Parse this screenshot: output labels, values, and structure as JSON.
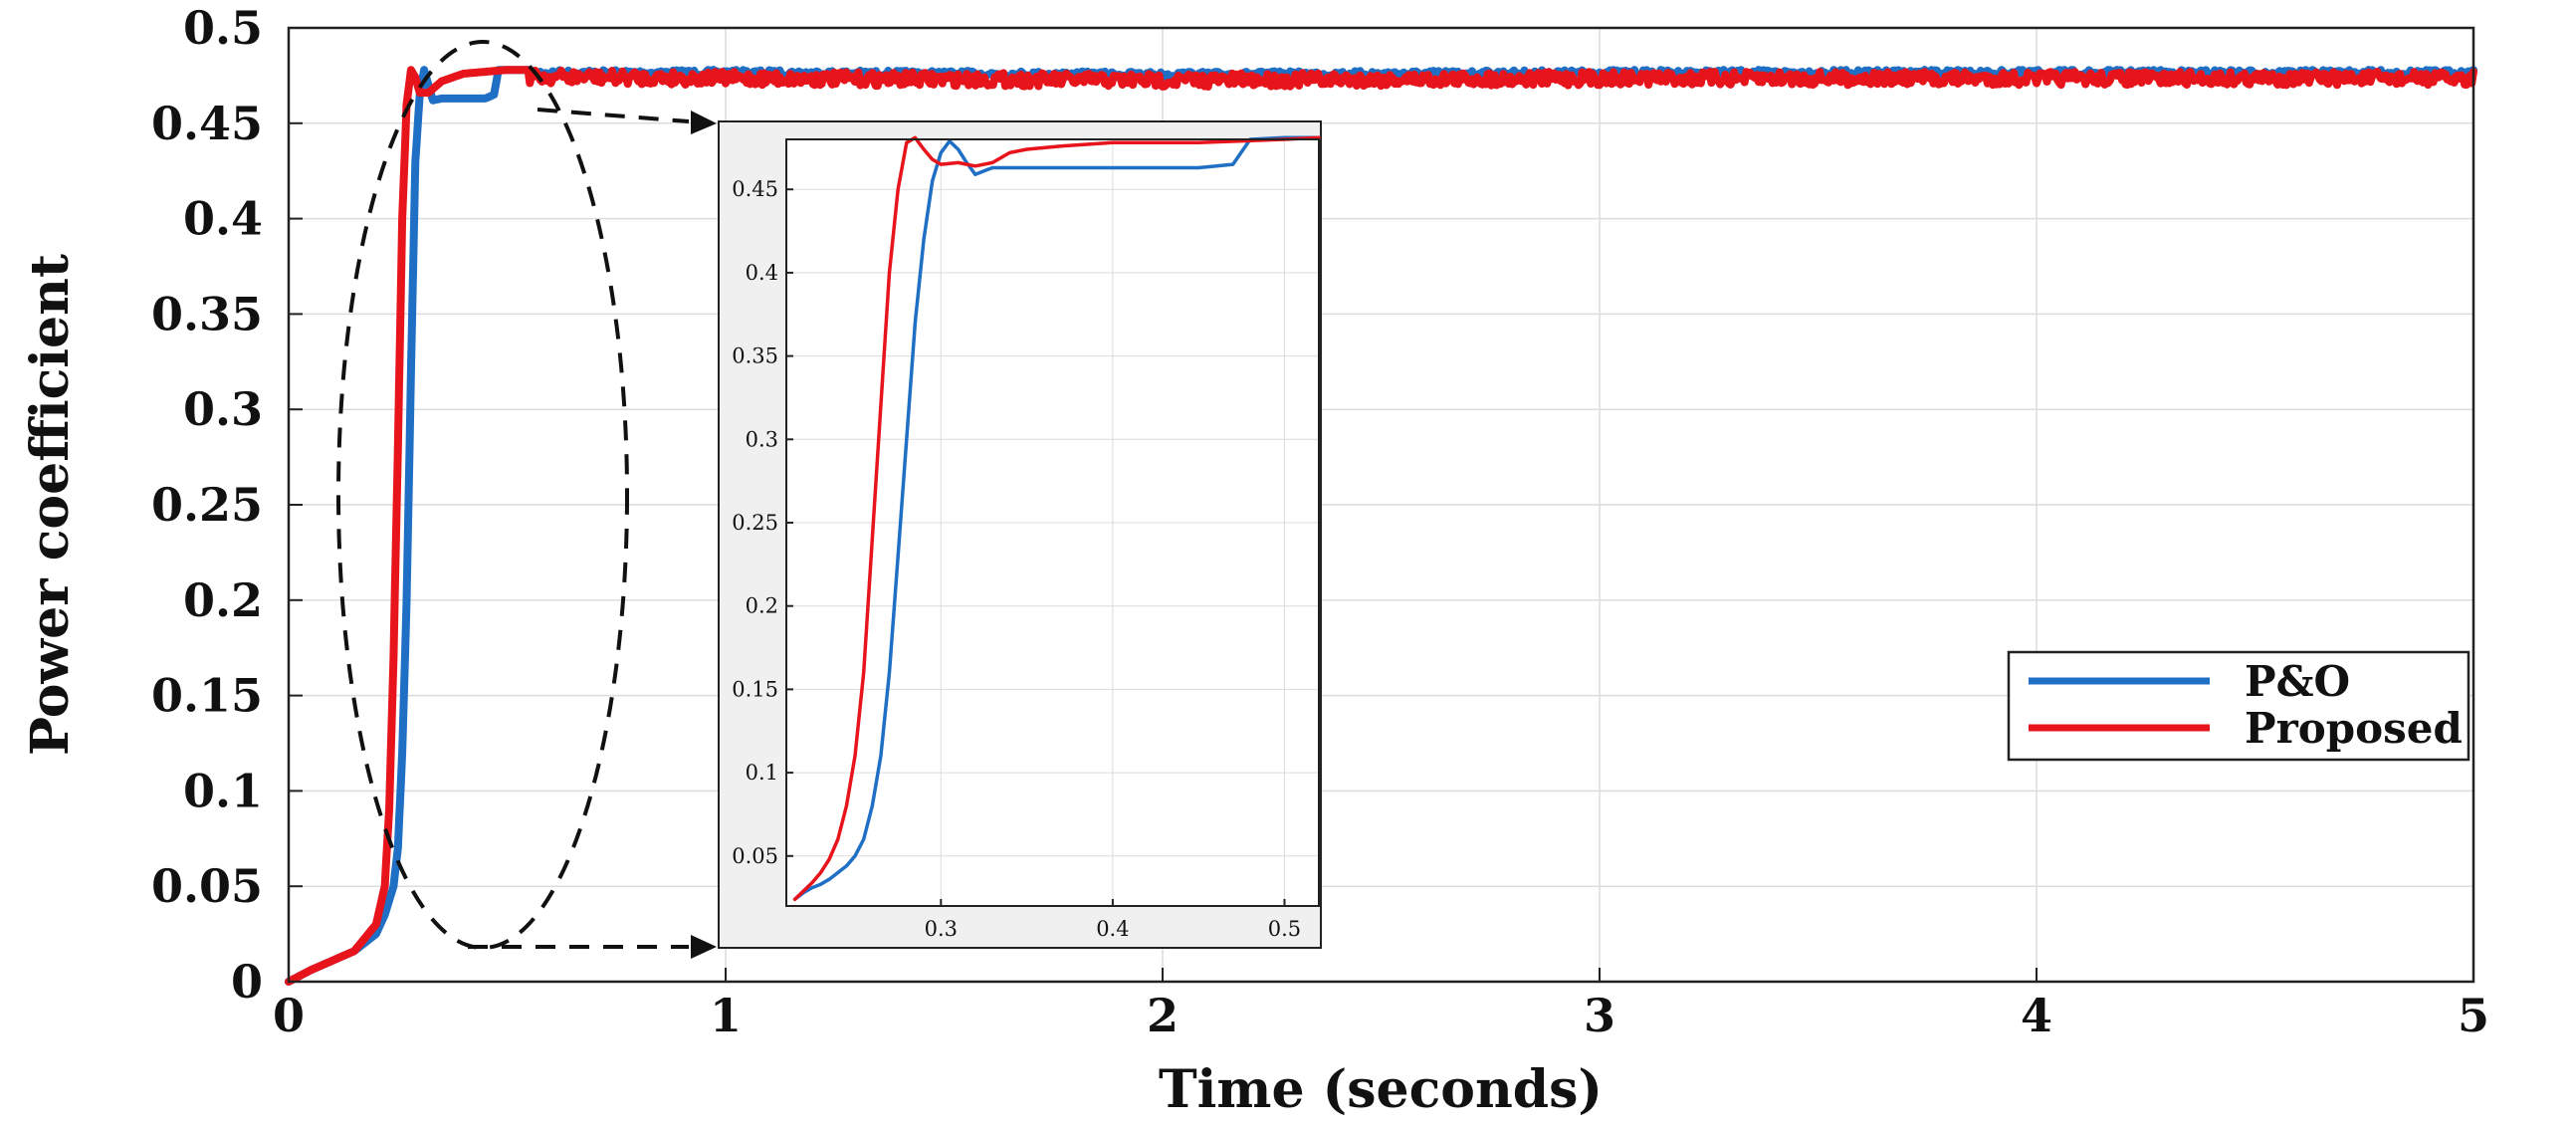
{
  "chart_data": [
    {
      "type": "line",
      "xlabel": "Time (seconds)",
      "ylabel": "Power coefficient",
      "xlim": [
        0,
        5
      ],
      "ylim": [
        0,
        0.5
      ],
      "x_ticks": [
        "0",
        "1",
        "2",
        "3",
        "4",
        "5"
      ],
      "y_ticks": [
        "0",
        "0.05",
        "0.1",
        "0.15",
        "0.2",
        "0.25",
        "0.3",
        "0.35",
        "0.4",
        "0.45",
        "0.5"
      ],
      "grid": true,
      "legend_position": "right",
      "series": [
        {
          "name": "P&O",
          "color": "#1f6fc4",
          "x": [
            0,
            0.05,
            0.1,
            0.15,
            0.2,
            0.22,
            0.24,
            0.25,
            0.26,
            0.27,
            0.28,
            0.29,
            0.3,
            0.31,
            0.32,
            0.33,
            0.35,
            0.4,
            0.45,
            0.47,
            0.48,
            0.5,
            1.0,
            2.0,
            3.0,
            4.0,
            5.0
          ],
          "y": [
            0,
            0.006,
            0.011,
            0.016,
            0.025,
            0.035,
            0.05,
            0.07,
            0.12,
            0.2,
            0.32,
            0.43,
            0.465,
            0.478,
            0.47,
            0.462,
            0.463,
            0.463,
            0.463,
            0.465,
            0.478,
            0.478,
            0.478,
            0.477,
            0.478,
            0.478,
            0.478
          ]
        },
        {
          "name": "Proposed",
          "color": "#e8141b",
          "x": [
            0,
            0.05,
            0.1,
            0.15,
            0.2,
            0.22,
            0.23,
            0.24,
            0.25,
            0.26,
            0.27,
            0.28,
            0.29,
            0.3,
            0.32,
            0.35,
            0.4,
            0.45,
            0.5,
            1.0,
            2.0,
            3.0,
            4.0,
            5.0
          ],
          "y": [
            0,
            0.006,
            0.011,
            0.016,
            0.03,
            0.05,
            0.09,
            0.17,
            0.28,
            0.4,
            0.46,
            0.478,
            0.474,
            0.466,
            0.466,
            0.472,
            0.476,
            0.477,
            0.478,
            0.477,
            0.476,
            0.477,
            0.477,
            0.477
          ]
        }
      ]
    },
    {
      "type": "line",
      "xlim": [
        0.21,
        0.52
      ],
      "ylim": [
        0.02,
        0.48
      ],
      "x_ticks": [
        "0.3",
        "0.4",
        "0.5"
      ],
      "y_ticks": [
        "0.05",
        "0.1",
        "0.15",
        "0.2",
        "0.25",
        "0.3",
        "0.35",
        "0.4",
        "0.45"
      ],
      "grid": true,
      "series": [
        {
          "color": "#1f6fc4",
          "x": [
            0.215,
            0.22,
            0.225,
            0.23,
            0.235,
            0.24,
            0.245,
            0.25,
            0.255,
            0.26,
            0.265,
            0.27,
            0.275,
            0.28,
            0.285,
            0.29,
            0.295,
            0.3,
            0.305,
            0.31,
            0.315,
            0.32,
            0.325,
            0.33,
            0.35,
            0.4,
            0.45,
            0.47,
            0.48,
            0.5,
            0.52
          ],
          "y": [
            0.024,
            0.028,
            0.031,
            0.033,
            0.036,
            0.04,
            0.044,
            0.05,
            0.06,
            0.08,
            0.11,
            0.16,
            0.23,
            0.3,
            0.37,
            0.42,
            0.455,
            0.472,
            0.479,
            0.474,
            0.466,
            0.459,
            0.461,
            0.463,
            0.463,
            0.463,
            0.463,
            0.465,
            0.48,
            0.481,
            0.481
          ]
        },
        {
          "color": "#e8141b",
          "x": [
            0.215,
            0.22,
            0.225,
            0.23,
            0.235,
            0.24,
            0.245,
            0.25,
            0.255,
            0.26,
            0.265,
            0.27,
            0.275,
            0.28,
            0.285,
            0.29,
            0.295,
            0.3,
            0.31,
            0.32,
            0.33,
            0.34,
            0.35,
            0.37,
            0.4,
            0.45,
            0.5,
            0.52
          ],
          "y": [
            0.024,
            0.029,
            0.034,
            0.04,
            0.048,
            0.06,
            0.08,
            0.11,
            0.16,
            0.24,
            0.32,
            0.4,
            0.45,
            0.478,
            0.481,
            0.474,
            0.468,
            0.465,
            0.466,
            0.464,
            0.466,
            0.472,
            0.474,
            0.476,
            0.478,
            0.478,
            0.48,
            0.481
          ]
        }
      ]
    }
  ]
}
